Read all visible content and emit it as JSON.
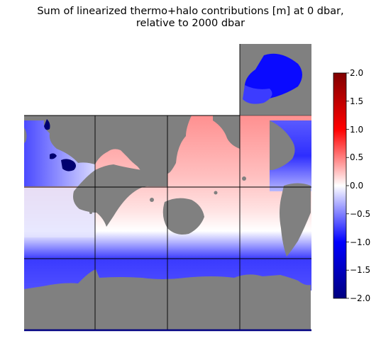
{
  "figure": {
    "title_line1": "Sum of linearized thermo+halo contributions [m] at 0 dbar,",
    "title_line2": "relative to 2000 dbar"
  },
  "map": {
    "colormap": "seismic",
    "land_color": "#808080",
    "grid_color": "#000000"
  },
  "colorbar": {
    "min": -2.0,
    "max": 2.0,
    "ticks": [
      2.0,
      1.5,
      1.0,
      0.5,
      0.0,
      -0.5,
      -1.0,
      -1.5,
      -2.0
    ],
    "tick_labels": [
      "2.0",
      "1.5",
      "1.0",
      "0.5",
      "0.0",
      "−0.5",
      "−1.0",
      "−1.5",
      "−2.0"
    ],
    "colors": [
      "#800000",
      "#ff0000",
      "#ffffff",
      "#0000ff",
      "#000080"
    ]
  }
}
